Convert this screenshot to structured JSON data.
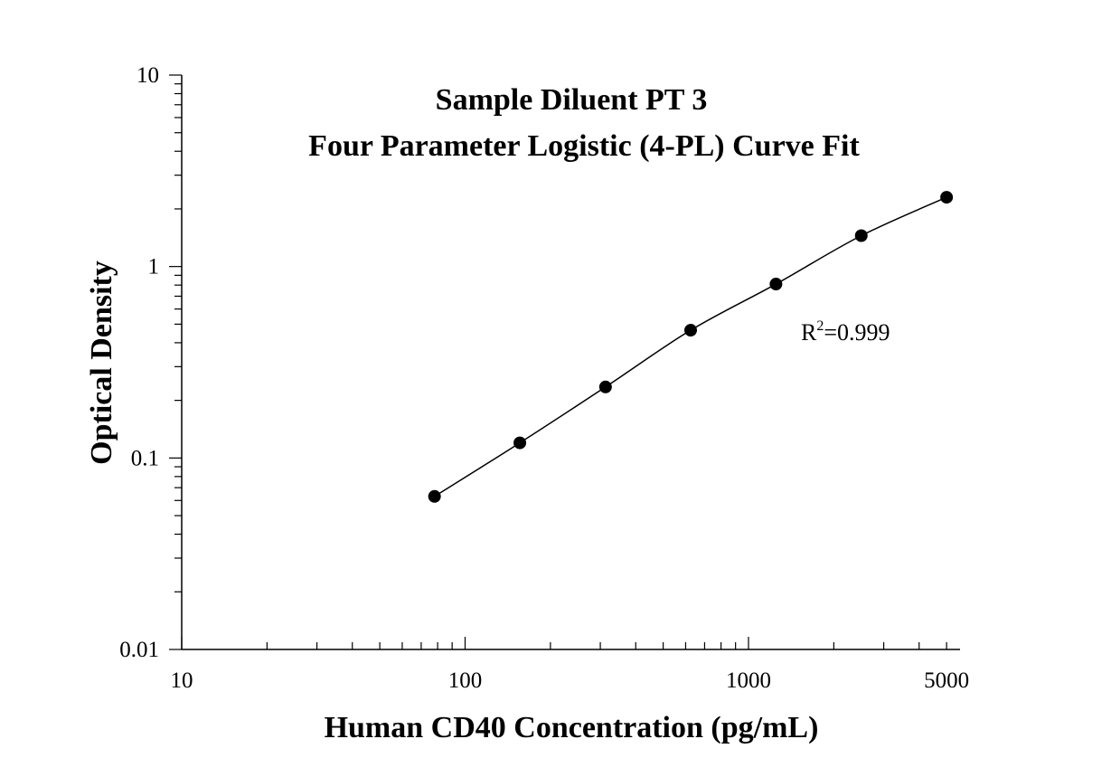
{
  "chart_data": {
    "type": "scatter",
    "title": [
      "Sample Diluent PT 3",
      "Four Parameter Logistic (4-PL) Curve Fit"
    ],
    "xlabel": "Human CD40 Concentration (pg/mL)",
    "ylabel": "Optical Density",
    "x_scale": "log",
    "y_scale": "log",
    "xlim": [
      10,
      5000
    ],
    "ylim": [
      0.01,
      10
    ],
    "x_ticks": [
      10,
      100,
      1000,
      5000
    ],
    "x_tick_labels": [
      "10",
      "100",
      "1000",
      "5000"
    ],
    "y_ticks": [
      0.01,
      0.1,
      1,
      10
    ],
    "y_tick_labels": [
      "0.01",
      "0.1",
      "1",
      "10"
    ],
    "grid": false,
    "series": [
      {
        "x": [
          78,
          156,
          313,
          625,
          1250,
          2500,
          5000
        ],
        "y": [
          0.063,
          0.12,
          0.235,
          0.465,
          0.81,
          1.45,
          2.3
        ],
        "marker": "filled-circle",
        "color": "#000000",
        "fit": "4-PL curve"
      }
    ],
    "annotation": {
      "prefix": "R",
      "superscript": "2",
      "suffix": "=0.999"
    }
  }
}
